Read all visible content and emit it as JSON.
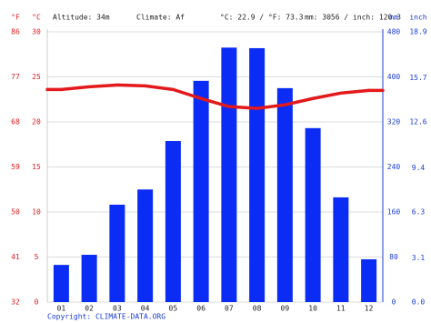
{
  "chart_data": {
    "type": "bar",
    "unit_f": "°F",
    "unit_c": "°C",
    "unit_mm": "mm",
    "unit_inch": "inch",
    "altitude": "Altitude: 34m",
    "climate": "Climate: Af",
    "temp_summary": "°C: 22.9 / °F: 73.3",
    "precip_summary": "mm: 3056 / inch: 120.3",
    "copyright": "Copyright: CLIMATE-DATA.ORG",
    "categories": [
      "01",
      "02",
      "03",
      "04",
      "05",
      "06",
      "07",
      "08",
      "09",
      "10",
      "11",
      "12"
    ],
    "series": [
      {
        "type": "bar",
        "color": "#0a2cf5",
        "axis": "y2",
        "values": [
          66,
          84,
          173,
          200,
          286,
          393,
          452,
          451,
          380,
          309,
          186,
          76
        ]
      },
      {
        "type": "line",
        "color": "#e31a1c",
        "axis": "y",
        "values": [
          23.6,
          23.9,
          24.1,
          24.0,
          23.6,
          22.6,
          21.7,
          21.5,
          21.9,
          22.6,
          23.2,
          23.5
        ]
      }
    ],
    "ylim": [
      0,
      30
    ],
    "yticks": [
      0,
      5,
      10,
      15,
      20,
      25,
      30
    ],
    "yflim": [
      32,
      86
    ],
    "yfticks": [
      32,
      41,
      50,
      59,
      68,
      77,
      86
    ],
    "y2lim": [
      0,
      480
    ],
    "y2ticks": [
      0,
      80,
      160,
      240,
      320,
      400,
      480
    ],
    "y3lim": [
      0,
      18.9
    ],
    "y3ticks": [
      {
        "value": 0,
        "label": "0.0"
      },
      3.1,
      6.3,
      9.4,
      12.6,
      15.7,
      18.9
    ],
    "grid": true
  }
}
